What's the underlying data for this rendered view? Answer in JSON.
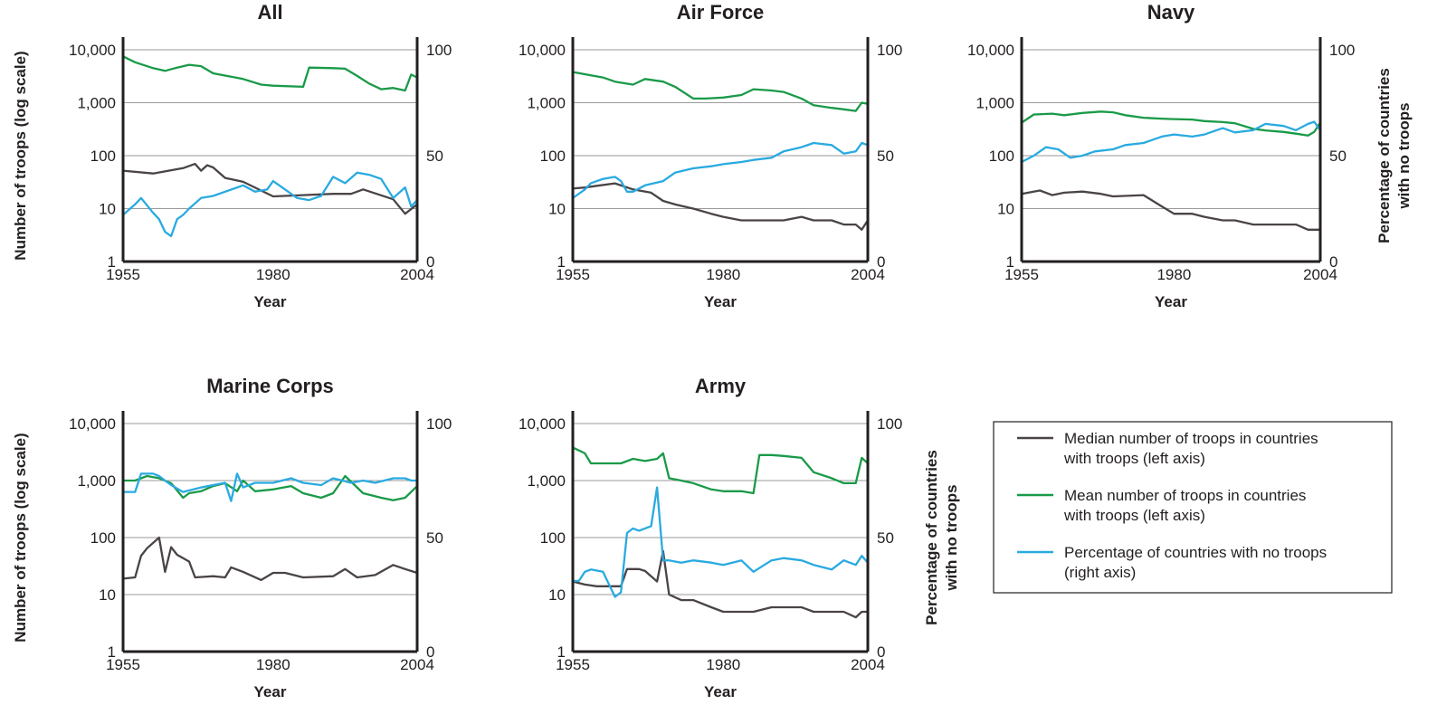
{
  "chart_data": [
    {
      "type": "line",
      "title": "All",
      "xlabel": "Year",
      "ylabel": "Number of troops (log scale)",
      "ylabel_right": "",
      "x_ticks": [
        "1955",
        "1980",
        "2004"
      ],
      "y_ticks_left": [
        "1",
        "10",
        "100",
        "1,000",
        "10,000"
      ],
      "y_ticks_right": [
        "0",
        "50",
        "100"
      ],
      "xlim": [
        1955,
        2004
      ],
      "ylim_left": [
        1,
        10000
      ],
      "ylim_right": [
        0,
        100
      ],
      "y_scale_left": "log",
      "grid": true,
      "series": [
        {
          "name": "Median number of troops in countries with troops (left axis)",
          "axis": "left",
          "color": "#4a4446",
          "x": [
            1955,
            1960,
            1965,
            1967,
            1968,
            1969,
            1970,
            1972,
            1975,
            1980,
            1985,
            1990,
            1993,
            1995,
            2000,
            2002,
            2004
          ],
          "values": [
            52,
            46,
            58,
            70,
            52,
            66,
            60,
            38,
            32,
            17,
            18,
            19,
            19,
            23,
            15,
            8,
            12
          ]
        },
        {
          "name": "Mean number of troops in countries with troops (left axis)",
          "axis": "left",
          "color": "#1a9a48",
          "x": [
            1955,
            1957,
            1960,
            1962,
            1964,
            1966,
            1968,
            1970,
            1975,
            1978,
            1980,
            1985,
            1986,
            1990,
            1992,
            1994,
            1996,
            1998,
            2000,
            2002,
            2003,
            2004
          ],
          "values": [
            7500,
            5800,
            4500,
            4000,
            4600,
            5200,
            4900,
            3600,
            2800,
            2200,
            2100,
            2000,
            4600,
            4500,
            4400,
            3200,
            2300,
            1800,
            1900,
            1700,
            3400,
            3000
          ]
        },
        {
          "name": "Percentage of countries with no troops (right axis)",
          "axis": "right",
          "color": "#29aae1",
          "x": [
            1955,
            1957,
            1958,
            1960,
            1961,
            1962,
            1963,
            1964,
            1965,
            1966,
            1968,
            1970,
            1972,
            1975,
            1977,
            1979,
            1980,
            1982,
            1984,
            1986,
            1988,
            1990,
            1992,
            1994,
            1996,
            1998,
            2000,
            2002,
            2003,
            2004
          ],
          "values": [
            22,
            27,
            30,
            23,
            20,
            14,
            12,
            20,
            22,
            25,
            30,
            31,
            33,
            36,
            33,
            34,
            38,
            34,
            30,
            29,
            31,
            40,
            37,
            42,
            41,
            39,
            30,
            35,
            26,
            29
          ]
        }
      ]
    },
    {
      "type": "line",
      "title": "Air Force",
      "xlabel": "Year",
      "ylabel": "",
      "ylabel_right": "",
      "x_ticks": [
        "1955",
        "1980",
        "2004"
      ],
      "y_ticks_left": [
        "1",
        "10",
        "100",
        "1,000",
        "10,000"
      ],
      "y_ticks_right": [
        "0",
        "50",
        "100"
      ],
      "xlim": [
        1955,
        2004
      ],
      "ylim_left": [
        1,
        10000
      ],
      "ylim_right": [
        0,
        100
      ],
      "y_scale_left": "log",
      "grid": true,
      "series": [
        {
          "name": "Median number of troops in countries with troops (left axis)",
          "axis": "left",
          "color": "#4a4446",
          "x": [
            1955,
            1957,
            1959,
            1962,
            1965,
            1968,
            1970,
            1972,
            1975,
            1978,
            1980,
            1983,
            1985,
            1990,
            1993,
            1995,
            1998,
            2000,
            2002,
            2003,
            2004
          ],
          "values": [
            24,
            25,
            27,
            30,
            23,
            20,
            14,
            12,
            10,
            8,
            7,
            6,
            6,
            6,
            7,
            6,
            6,
            5,
            5,
            4,
            6
          ]
        },
        {
          "name": "Mean number of troops in countries with troops (left axis)",
          "axis": "left",
          "color": "#1a9a48",
          "x": [
            1955,
            1958,
            1960,
            1962,
            1965,
            1967,
            1970,
            1972,
            1975,
            1977,
            1980,
            1983,
            1985,
            1988,
            1990,
            1993,
            1995,
            1998,
            2000,
            2002,
            2003,
            2004
          ],
          "values": [
            3800,
            3300,
            3000,
            2500,
            2200,
            2800,
            2500,
            2000,
            1200,
            1200,
            1250,
            1400,
            1800,
            1700,
            1600,
            1200,
            900,
            800,
            750,
            700,
            1000,
            950
          ]
        },
        {
          "name": "Percentage of countries with no troops (right axis)",
          "axis": "right",
          "color": "#29aae1",
          "x": [
            1955,
            1957,
            1958,
            1960,
            1962,
            1963,
            1964,
            1965,
            1967,
            1970,
            1972,
            1975,
            1978,
            1980,
            1983,
            1985,
            1988,
            1990,
            1993,
            1995,
            1998,
            2000,
            2002,
            2003,
            2004
          ],
          "values": [
            30,
            34,
            37,
            39,
            40,
            38,
            33,
            33,
            36,
            38,
            42,
            44,
            45,
            46,
            47,
            48,
            49,
            52,
            54,
            56,
            55,
            51,
            52,
            56,
            55
          ]
        }
      ]
    },
    {
      "type": "line",
      "title": "Navy",
      "xlabel": "Year",
      "ylabel": "",
      "ylabel_right": "Percentage of countries with no troops",
      "x_ticks": [
        "1955",
        "1980",
        "2004"
      ],
      "y_ticks_left": [
        "1",
        "10",
        "100",
        "1,000",
        "10,000"
      ],
      "y_ticks_right": [
        "0",
        "50",
        "100"
      ],
      "xlim": [
        1955,
        2004
      ],
      "ylim_left": [
        1,
        10000
      ],
      "ylim_right": [
        0,
        100
      ],
      "y_scale_left": "log",
      "grid": true,
      "series": [
        {
          "name": "Median number of troops in countries with troops (left axis)",
          "axis": "left",
          "color": "#4a4446",
          "x": [
            1955,
            1958,
            1960,
            1962,
            1965,
            1968,
            1970,
            1975,
            1978,
            1980,
            1983,
            1985,
            1988,
            1990,
            1993,
            1995,
            1998,
            2000,
            2002,
            2004
          ],
          "values": [
            19,
            22,
            18,
            20,
            21,
            19,
            17,
            18,
            11,
            8,
            8,
            7,
            6,
            6,
            5,
            5,
            5,
            5,
            4,
            4
          ]
        },
        {
          "name": "Mean number of troops in countries with troops (left axis)",
          "axis": "left",
          "color": "#1a9a48",
          "x": [
            1955,
            1957,
            1960,
            1962,
            1965,
            1968,
            1970,
            1972,
            1975,
            1978,
            1980,
            1983,
            1985,
            1988,
            1990,
            1993,
            1995,
            1998,
            2000,
            2002,
            2003,
            2004
          ],
          "values": [
            420,
            600,
            620,
            580,
            640,
            680,
            660,
            580,
            520,
            500,
            490,
            480,
            450,
            430,
            410,
            320,
            300,
            280,
            260,
            240,
            280,
            420
          ]
        },
        {
          "name": "Percentage of countries with no troops (right axis)",
          "axis": "right",
          "color": "#29aae1",
          "x": [
            1955,
            1957,
            1959,
            1961,
            1963,
            1965,
            1967,
            1970,
            1972,
            1975,
            1978,
            1980,
            1983,
            1985,
            1988,
            1990,
            1993,
            1995,
            1998,
            2000,
            2002,
            2003,
            2004
          ],
          "values": [
            47,
            50,
            54,
            53,
            49,
            50,
            52,
            53,
            55,
            56,
            59,
            60,
            59,
            60,
            63,
            61,
            62,
            65,
            64,
            62,
            65,
            66,
            62
          ]
        }
      ]
    },
    {
      "type": "line",
      "title": "Marine Corps",
      "xlabel": "Year",
      "ylabel": "Number of troops (log scale)",
      "ylabel_right": "",
      "x_ticks": [
        "1955",
        "1980",
        "2004"
      ],
      "y_ticks_left": [
        "1",
        "10",
        "100",
        "1,000",
        "10,000"
      ],
      "y_ticks_right": [
        "0",
        "50",
        "100"
      ],
      "xlim": [
        1955,
        2004
      ],
      "ylim_left": [
        1,
        10000
      ],
      "ylim_right": [
        0,
        100
      ],
      "y_scale_left": "log",
      "grid": true,
      "series": [
        {
          "name": "Median number of troops in countries with troops (left axis)",
          "axis": "left",
          "color": "#4a4446",
          "x": [
            1955,
            1957,
            1958,
            1959,
            1961,
            1962,
            1963,
            1964,
            1966,
            1967,
            1970,
            1972,
            1973,
            1975,
            1978,
            1980,
            1982,
            1985,
            1990,
            1992,
            1994,
            1997,
            2000,
            2002,
            2004
          ],
          "values": [
            19,
            20,
            48,
            65,
            100,
            25,
            68,
            50,
            38,
            20,
            21,
            20,
            30,
            25,
            18,
            24,
            24,
            20,
            21,
            28,
            20,
            22,
            33,
            28,
            24
          ]
        },
        {
          "name": "Mean number of troops in countries with troops (left axis)",
          "axis": "left",
          "color": "#1a9a48",
          "x": [
            1955,
            1957,
            1959,
            1961,
            1963,
            1965,
            1966,
            1968,
            1970,
            1972,
            1974,
            1975,
            1977,
            1980,
            1983,
            1985,
            1988,
            1990,
            1992,
            1995,
            1998,
            2000,
            2002,
            2004
          ],
          "values": [
            1000,
            1000,
            1200,
            1100,
            900,
            500,
            600,
            650,
            800,
            900,
            650,
            1000,
            650,
            700,
            800,
            600,
            500,
            600,
            1200,
            600,
            500,
            450,
            500,
            800
          ]
        },
        {
          "name": "Percentage of countries with no troops (right axis)",
          "axis": "right",
          "color": "#29aae1",
          "x": [
            1955,
            1957,
            1958,
            1960,
            1961,
            1962,
            1963,
            1965,
            1968,
            1970,
            1972,
            1973,
            1974,
            1975,
            1977,
            1980,
            1983,
            1985,
            1988,
            1990,
            1993,
            1995,
            1997,
            2000,
            2002,
            2003,
            2004
          ],
          "values": [
            70,
            70,
            78,
            78,
            77,
            75,
            73,
            70,
            72,
            73,
            74,
            66,
            78,
            72,
            74,
            74,
            76,
            74,
            73,
            76,
            74,
            75,
            74,
            76,
            76,
            75,
            75
          ]
        }
      ]
    },
    {
      "type": "line",
      "title": "Army",
      "xlabel": "Year",
      "ylabel": "",
      "ylabel_right": "Percentage of countries with no troops",
      "x_ticks": [
        "1955",
        "1980",
        "2004"
      ],
      "y_ticks_left": [
        "1",
        "10",
        "100",
        "1,000",
        "10,000"
      ],
      "y_ticks_right": [
        "0",
        "50",
        "100"
      ],
      "xlim": [
        1955,
        2004
      ],
      "ylim_left": [
        1,
        10000
      ],
      "ylim_right": [
        0,
        100
      ],
      "y_scale_left": "log",
      "grid": true,
      "series": [
        {
          "name": "Median number of troops in countries with troops (left axis)",
          "axis": "left",
          "color": "#4a4446",
          "x": [
            1955,
            1957,
            1959,
            1961,
            1963,
            1964,
            1966,
            1967,
            1969,
            1970,
            1971,
            1973,
            1975,
            1978,
            1980,
            1982,
            1985,
            1988,
            1990,
            1993,
            1995,
            1998,
            2000,
            2002,
            2003,
            2004
          ],
          "values": [
            17,
            15,
            14,
            14,
            14,
            28,
            28,
            26,
            17,
            58,
            10,
            8,
            8,
            6,
            5,
            5,
            5,
            6,
            6,
            6,
            5,
            5,
            5,
            4,
            5,
            5
          ]
        },
        {
          "name": "Mean number of troops in countries with troops (left axis)",
          "axis": "left",
          "color": "#1a9a48",
          "x": [
            1955,
            1957,
            1958,
            1960,
            1963,
            1965,
            1967,
            1969,
            1970,
            1971,
            1973,
            1975,
            1978,
            1980,
            1983,
            1985,
            1986,
            1988,
            1990,
            1993,
            1995,
            1998,
            2000,
            2002,
            2003,
            2004
          ],
          "values": [
            3800,
            3000,
            2000,
            2000,
            2000,
            2400,
            2200,
            2400,
            3000,
            1100,
            1000,
            900,
            700,
            650,
            650,
            600,
            2800,
            2800,
            2700,
            2500,
            1400,
            1100,
            900,
            900,
            2500,
            2000
          ]
        },
        {
          "name": "Percentage of countries with no troops (right axis)",
          "axis": "right",
          "color": "#29aae1",
          "x": [
            1955,
            1956,
            1957,
            1958,
            1960,
            1962,
            1963,
            1964,
            1965,
            1966,
            1967,
            1968,
            1969,
            1970,
            1971,
            1973,
            1975,
            1978,
            1980,
            1983,
            1985,
            1988,
            1990,
            1993,
            1995,
            1998,
            2000,
            2002,
            2003,
            2004
          ],
          "values": [
            31,
            31,
            35,
            36,
            35,
            24,
            26,
            52,
            54,
            53,
            54,
            55,
            72,
            40,
            40,
            39,
            40,
            39,
            38,
            40,
            35,
            40,
            41,
            40,
            38,
            36,
            40,
            38,
            42,
            39
          ]
        }
      ]
    }
  ],
  "legend": {
    "items": [
      {
        "label_line1": "Median number of troops in countries",
        "label_line2": "with troops (left axis)",
        "color": "#4a4446"
      },
      {
        "label_line1": "Mean number of troops in countries",
        "label_line2": "with troops (left axis)",
        "color": "#1a9a48"
      },
      {
        "label_line1": "Percentage of countries with no troops",
        "label_line2": "(right axis)",
        "color": "#29aae1"
      }
    ]
  }
}
